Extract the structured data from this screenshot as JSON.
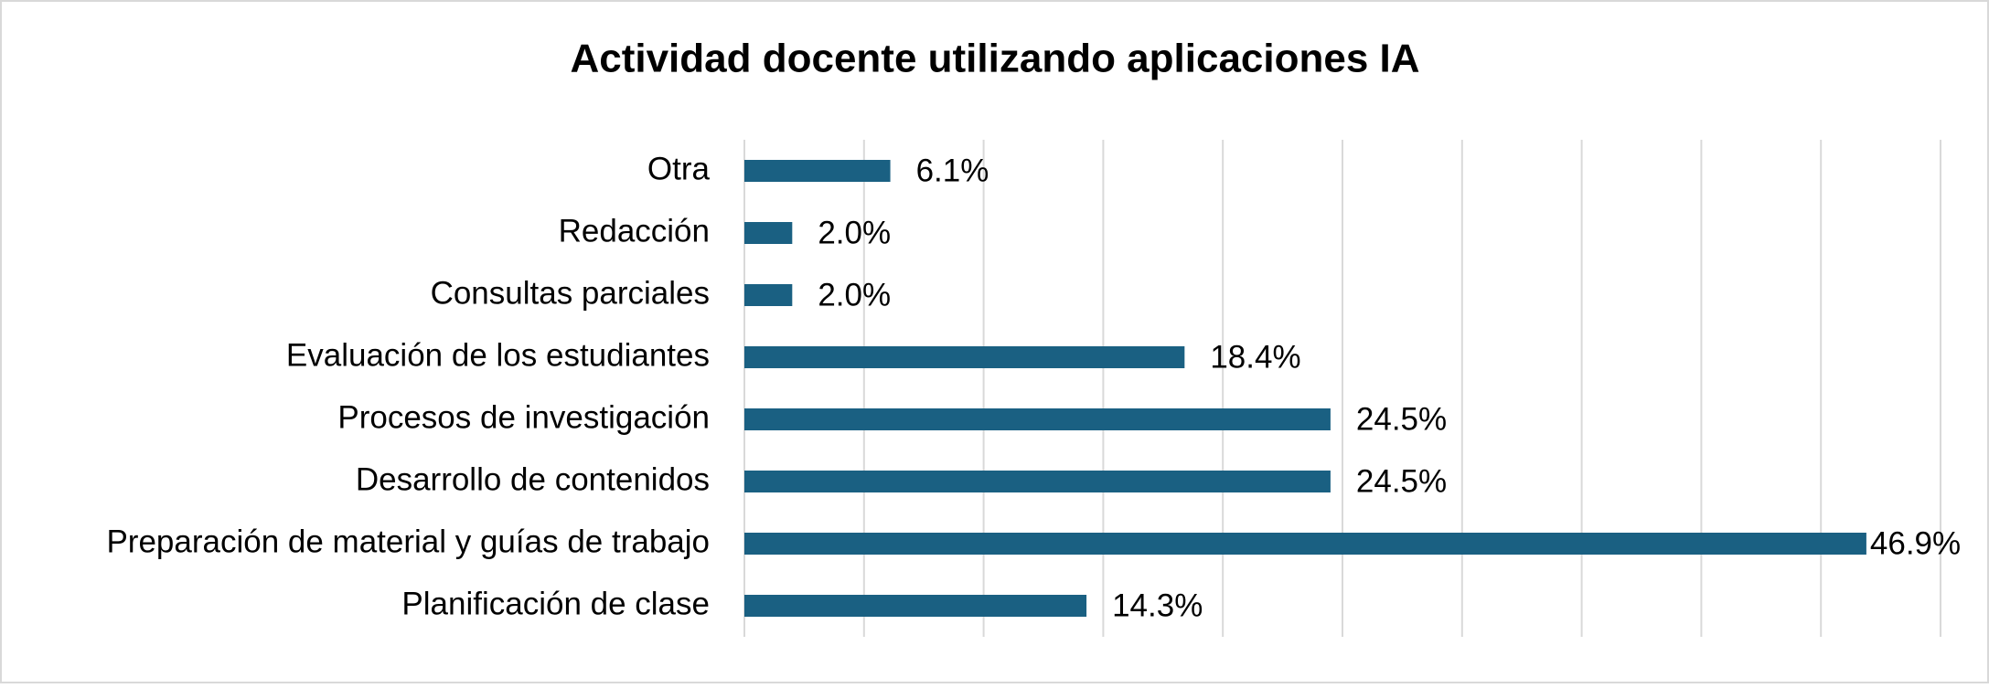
{
  "chart_data": {
    "type": "hbar",
    "title": "Actividad docente utilizando aplicaciones IA",
    "categories": [
      "Otra",
      "Redacción",
      "Consultas parciales",
      "Evaluación de los estudiantes",
      "Procesos de investigación",
      "Desarrollo de contenidos",
      "Preparación de material y guías de trabajo",
      "Planificación de clase"
    ],
    "values": [
      6.1,
      2.0,
      2.0,
      18.4,
      24.5,
      24.5,
      46.9,
      14.3
    ],
    "value_labels": [
      "6.1%",
      "2.0%",
      "2.0%",
      "18.4%",
      "24.5%",
      "24.5%",
      "46.9%",
      "14.3%"
    ],
    "color": "#1a6082",
    "xlim": [
      0,
      50
    ],
    "xticks": [
      0,
      5,
      10,
      15,
      20,
      25,
      30,
      35,
      40,
      45,
      50
    ],
    "grid": true
  }
}
